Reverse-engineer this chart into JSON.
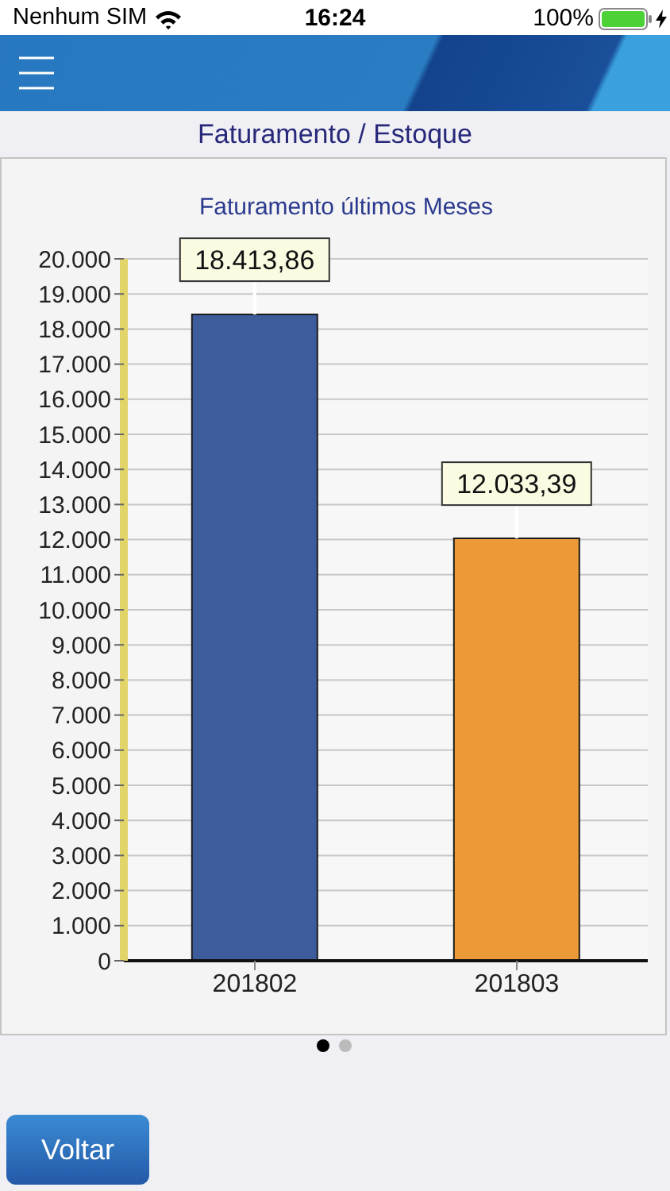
{
  "chart_data": {
    "type": "bar",
    "title": "Faturamento últimos Meses",
    "categories": [
      "201802",
      "201803"
    ],
    "values": [
      18413.86,
      12033.39
    ],
    "colors": [
      "#3d5c9c",
      "#ec9a38"
    ],
    "value_labels": [
      "18.413,86",
      "12.033,39"
    ],
    "ylim": [
      0,
      20000
    ],
    "yticks": [
      0,
      {
        "value": 1000,
        "label": "1.000"
      },
      {
        "value": 2000,
        "label": "2.000"
      },
      {
        "value": 3000,
        "label": "3.000"
      },
      {
        "value": 4000,
        "label": "4.000"
      },
      {
        "value": 5000,
        "label": "5.000"
      },
      {
        "value": 6000,
        "label": "6.000"
      },
      {
        "value": 7000,
        "label": "7.000"
      },
      {
        "value": 8000,
        "label": "8.000"
      },
      {
        "value": 9000,
        "label": "9.000"
      },
      {
        "value": 10000,
        "label": "10.000"
      },
      {
        "value": 11000,
        "label": "11.000"
      },
      {
        "value": 12000,
        "label": "12.000"
      },
      {
        "value": 13000,
        "label": "13.000"
      },
      {
        "value": 14000,
        "label": "14.000"
      },
      {
        "value": 15000,
        "label": "15.000"
      },
      {
        "value": 16000,
        "label": "16.000"
      },
      {
        "value": 17000,
        "label": "17.000"
      },
      {
        "value": 18000,
        "label": "18.000"
      },
      {
        "value": 19000,
        "label": "19.000"
      },
      {
        "value": 20000,
        "label": "20.000"
      }
    ],
    "grid": "y",
    "annotations": [
      "Nenhum SIM",
      "16:24",
      "100%",
      "Faturamento / Estoque",
      "Voltar"
    ]
  }
}
